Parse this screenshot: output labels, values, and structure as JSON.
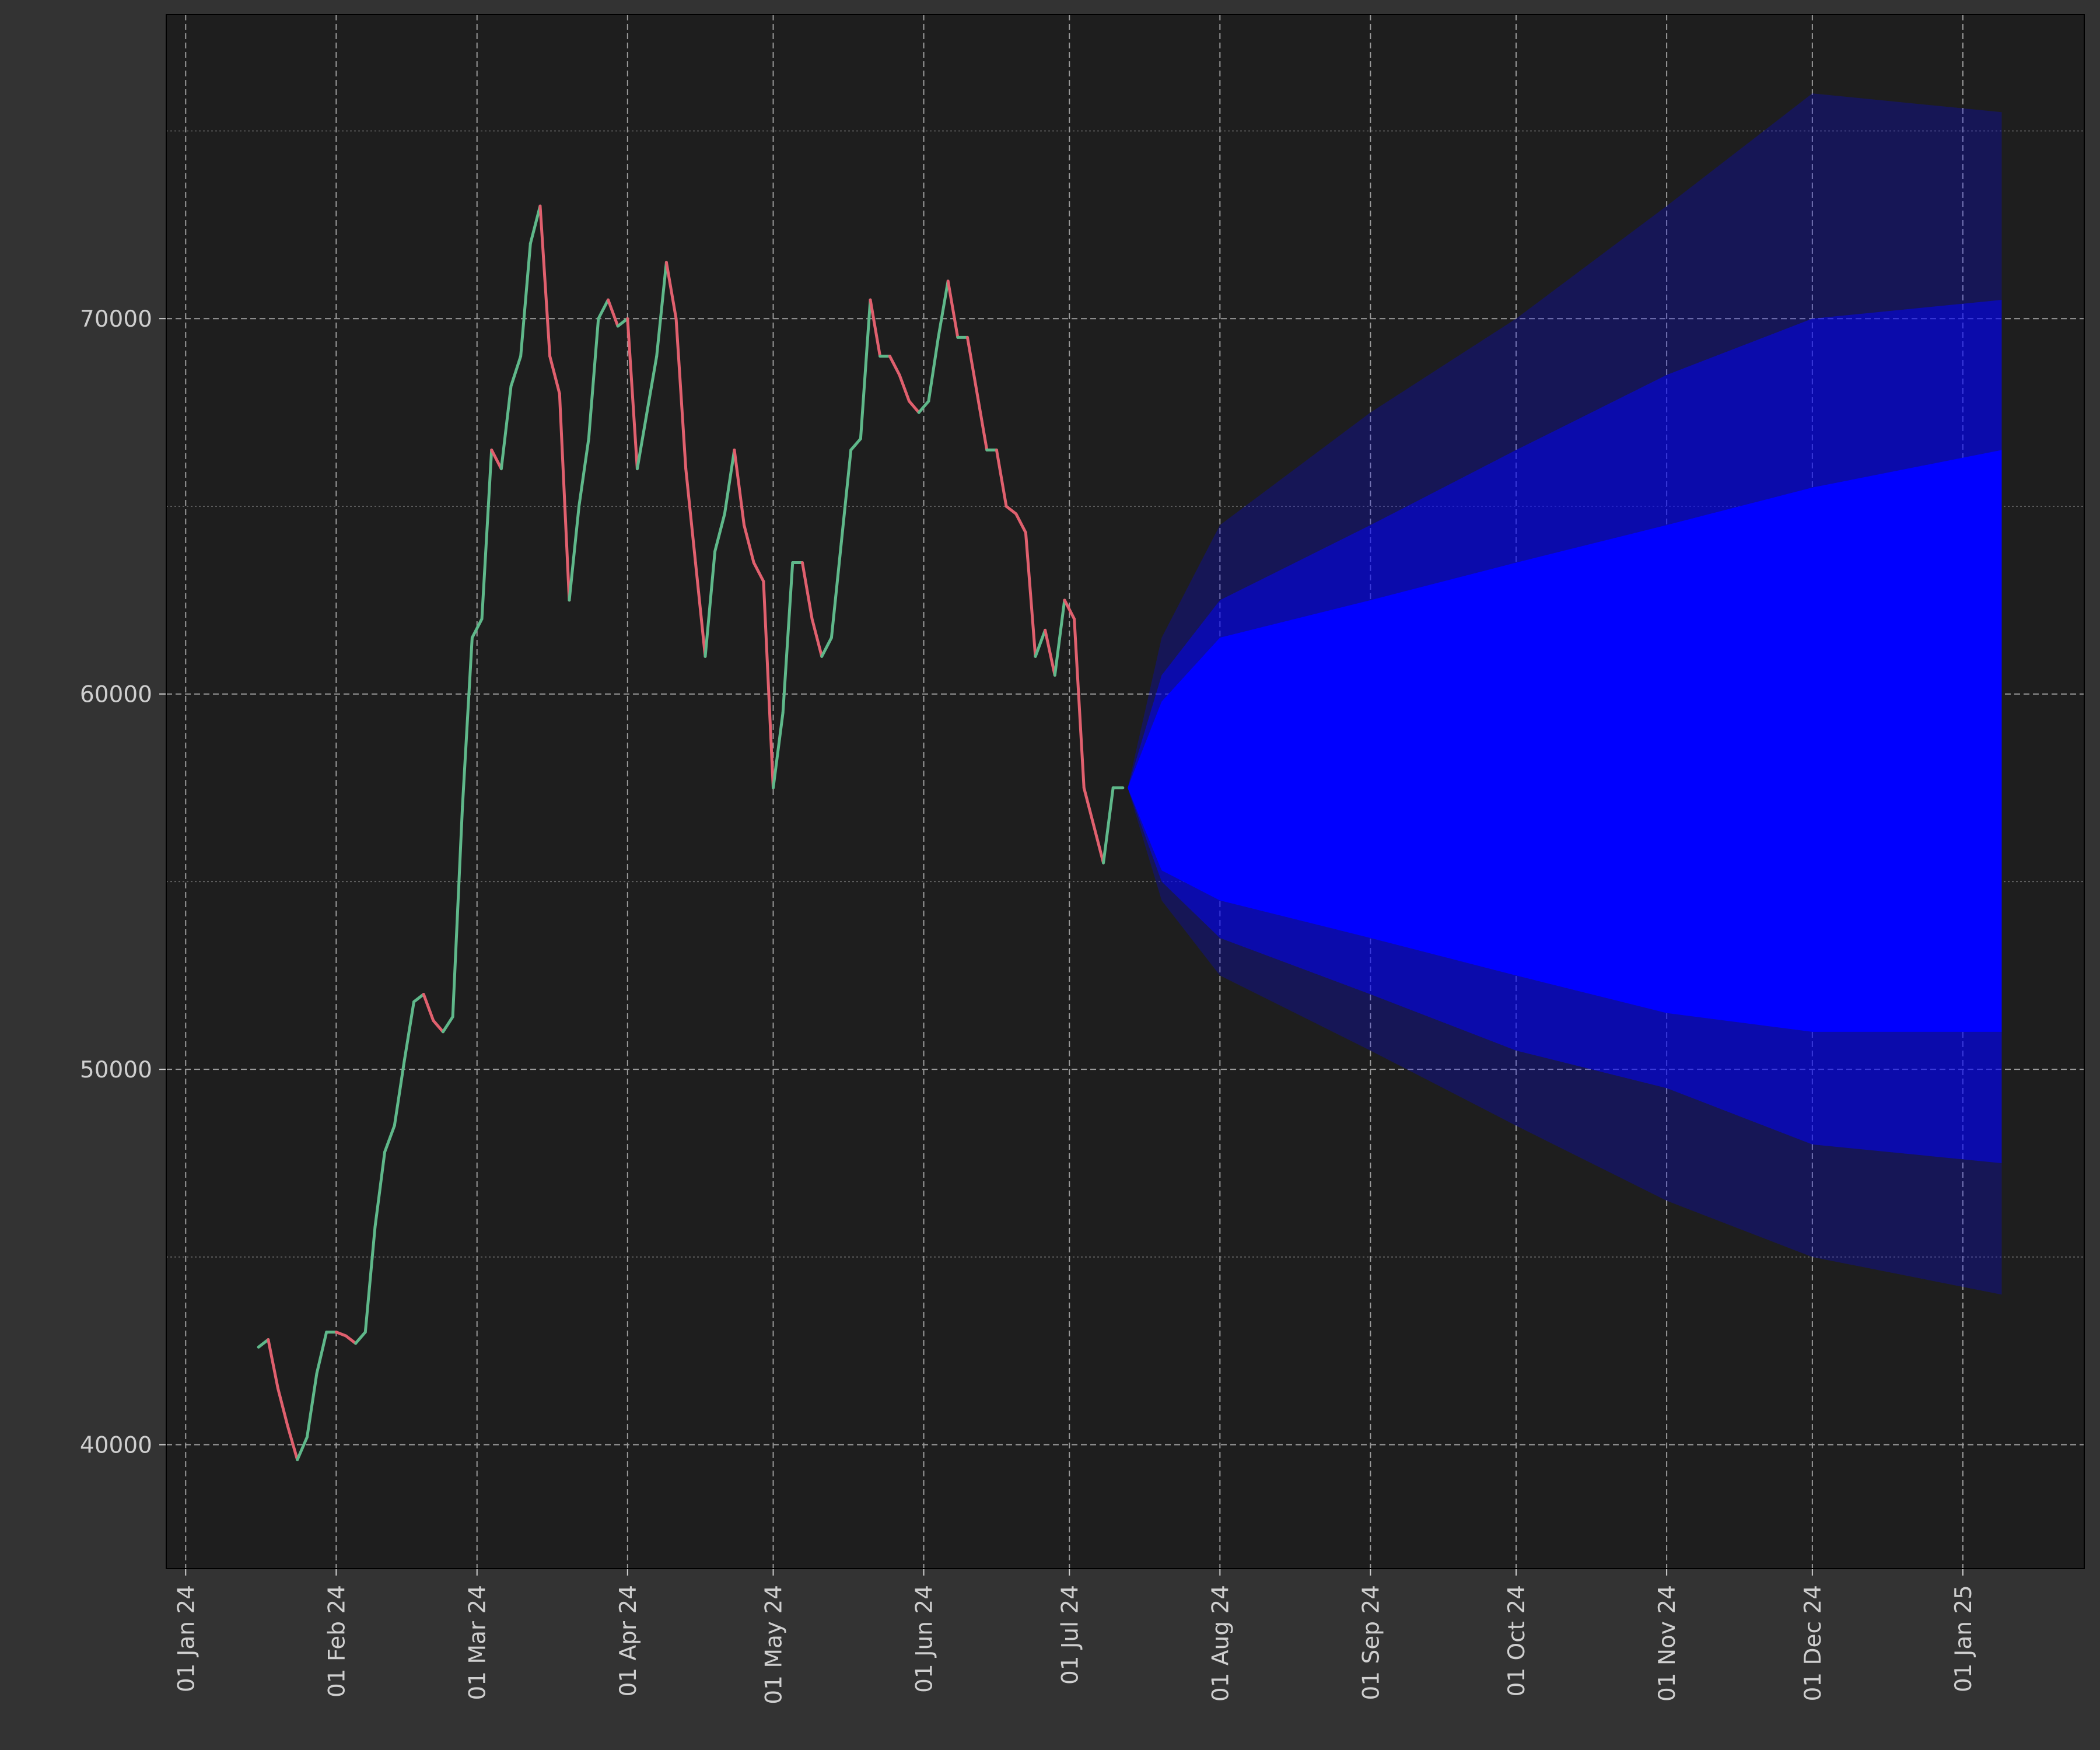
{
  "chart_data": {
    "type": "line",
    "xlim": [
      "2023-12-28",
      "2025-01-26"
    ],
    "ylim": [
      36700,
      78100
    ],
    "xticks": [
      {
        "value": "2024-01-01",
        "label": "01 Jan 24"
      },
      {
        "value": "2024-02-01",
        "label": "01 Feb 24"
      },
      {
        "value": "2024-03-01",
        "label": "01 Mar 24"
      },
      {
        "value": "2024-04-01",
        "label": "01 Apr 24"
      },
      {
        "value": "2024-05-01",
        "label": "01 May 24"
      },
      {
        "value": "2024-06-01",
        "label": "01 Jun 24"
      },
      {
        "value": "2024-07-01",
        "label": "01 Jul 24"
      },
      {
        "value": "2024-08-01",
        "label": "01 Aug 24"
      },
      {
        "value": "2024-09-01",
        "label": "01 Sep 24"
      },
      {
        "value": "2024-10-01",
        "label": "01 Oct 24"
      },
      {
        "value": "2024-11-01",
        "label": "01 Nov 24"
      },
      {
        "value": "2024-12-01",
        "label": "01 Dec 24"
      },
      {
        "value": "2025-01-01",
        "label": "01 Jan 25"
      }
    ],
    "yticks": [
      40000,
      50000,
      60000,
      70000
    ],
    "y_minor_ticks": [
      45000,
      55000,
      65000,
      75000
    ],
    "grid": true,
    "up_color": "#5fb88a",
    "down_color": "#e0606e",
    "x": [
      "2024-01-16",
      "2024-01-18",
      "2024-01-20",
      "2024-01-22",
      "2024-01-24",
      "2024-01-26",
      "2024-01-28",
      "2024-01-30",
      "2024-02-01",
      "2024-02-03",
      "2024-02-05",
      "2024-02-07",
      "2024-02-09",
      "2024-02-11",
      "2024-02-13",
      "2024-02-15",
      "2024-02-17",
      "2024-02-19",
      "2024-02-21",
      "2024-02-23",
      "2024-02-25",
      "2024-02-27",
      "2024-02-29",
      "2024-03-02",
      "2024-03-04",
      "2024-03-06",
      "2024-03-08",
      "2024-03-10",
      "2024-03-12",
      "2024-03-14",
      "2024-03-16",
      "2024-03-18",
      "2024-03-20",
      "2024-03-22",
      "2024-03-24",
      "2024-03-26",
      "2024-03-28",
      "2024-03-30",
      "2024-04-01",
      "2024-04-03",
      "2024-04-05",
      "2024-04-07",
      "2024-04-09",
      "2024-04-11",
      "2024-04-13",
      "2024-04-15",
      "2024-04-17",
      "2024-04-19",
      "2024-04-21",
      "2024-04-23",
      "2024-04-25",
      "2024-04-27",
      "2024-04-29",
      "2024-05-01",
      "2024-05-03",
      "2024-05-05",
      "2024-05-07",
      "2024-05-09",
      "2024-05-11",
      "2024-05-13",
      "2024-05-15",
      "2024-05-17",
      "2024-05-19",
      "2024-05-21",
      "2024-05-23",
      "2024-05-25",
      "2024-05-27",
      "2024-05-29",
      "2024-05-31",
      "2024-06-02",
      "2024-06-04",
      "2024-06-06",
      "2024-06-08",
      "2024-06-10",
      "2024-06-12",
      "2024-06-14",
      "2024-06-16",
      "2024-06-18",
      "2024-06-20",
      "2024-06-22",
      "2024-06-24",
      "2024-06-26",
      "2024-06-28",
      "2024-06-30",
      "2024-07-02",
      "2024-07-04",
      "2024-07-06",
      "2024-07-08",
      "2024-07-10",
      "2024-07-12"
    ],
    "values": [
      42600,
      42800,
      41500,
      40500,
      39600,
      40200,
      41900,
      43000,
      43000,
      42900,
      42700,
      43000,
      45800,
      47800,
      48500,
      50200,
      51800,
      52000,
      51300,
      51000,
      51400,
      57000,
      61500,
      62000,
      66500,
      66000,
      68200,
      69000,
      72000,
      73000,
      69000,
      68000,
      62500,
      65000,
      66800,
      70000,
      70500,
      69800,
      70000,
      66000,
      67500,
      69000,
      71500,
      70000,
      66000,
      63500,
      61000,
      63800,
      64800,
      66500,
      64500,
      63500,
      63000,
      57500,
      59500,
      63500,
      63500,
      62000,
      61000,
      61500,
      64000,
      66500,
      66800,
      70500,
      69000,
      69000,
      68500,
      67800,
      67500,
      67800,
      69500,
      71000,
      69500,
      69500,
      68000,
      66500,
      66500,
      65000,
      64800,
      64300,
      61000,
      61700,
      60500,
      62500,
      62000,
      57500,
      56500,
      55500,
      57500,
      57500
    ],
    "fan_x": [
      "2024-07-13",
      "2024-07-20",
      "2024-08-01",
      "2024-09-01",
      "2024-10-01",
      "2024-11-01",
      "2024-12-01",
      "2025-01-09"
    ],
    "bands": [
      {
        "color": "#0000ff",
        "opacity": 0.25,
        "upper": [
          57500,
          61500,
          64500,
          67500,
          70000,
          73000,
          76000,
          75500
        ],
        "lower": [
          57500,
          54500,
          52500,
          50500,
          48500,
          46500,
          45000,
          44000
        ]
      },
      {
        "color": "#0000ff",
        "opacity": 0.5,
        "upper": [
          57500,
          60500,
          62500,
          64500,
          66500,
          68500,
          70000,
          70500
        ],
        "lower": [
          57500,
          55000,
          53500,
          52000,
          50500,
          49500,
          48000,
          47500
        ]
      },
      {
        "color": "#0000ff",
        "opacity": 1,
        "upper": [
          57500,
          59800,
          61500,
          62500,
          63500,
          64500,
          65500,
          66500
        ],
        "lower": [
          57500,
          55300,
          54500,
          53500,
          52500,
          51500,
          51000,
          51000
        ]
      }
    ]
  }
}
